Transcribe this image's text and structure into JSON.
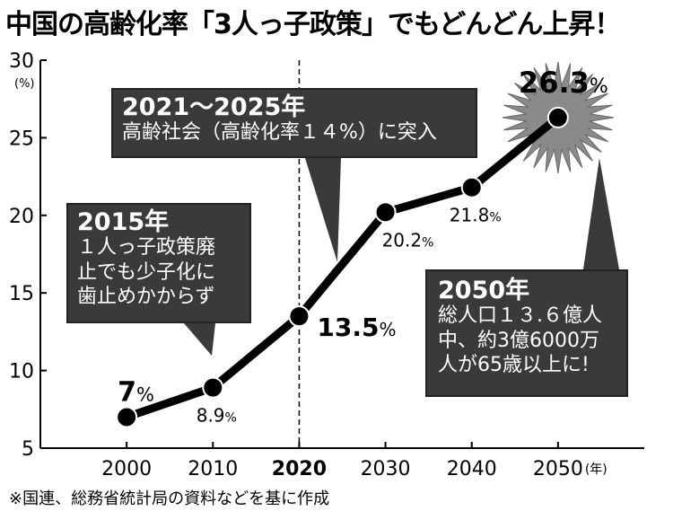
{
  "title": "中国の高齢化率「3人っ子政策」でもどんどん上昇！",
  "footnote": "※国連、総務省統計局の資料などを基に作成",
  "chart_data": {
    "type": "line",
    "x": [
      2000,
      2010,
      2020,
      2030,
      2040,
      2050
    ],
    "series": [
      {
        "values": [
          7,
          8.9,
          13.5,
          20.2,
          21.8,
          26.3
        ]
      }
    ],
    "data_labels": [
      "7%",
      "8.9%",
      "13.5%",
      "20.2%",
      "21.8%",
      "26.3%"
    ],
    "xlim": [
      1990,
      2060
    ],
    "ylim": [
      5,
      30
    ],
    "yticks": [
      5,
      10,
      15,
      20,
      25,
      30
    ],
    "xticks": [
      "2000",
      "2010",
      "2020",
      "2030",
      "2040",
      "2050"
    ],
    "x_unit": "(年)",
    "y_unit": "(%)",
    "highlight_year": 2020
  },
  "callouts": {
    "c2021": {
      "head": "2021〜2025年",
      "body": "高齢社会（高齢化率１４%）に突入"
    },
    "c2015": {
      "head": "2015年",
      "body": "１人っ子政策廃\n止でも少子化に\n歯止めかからず"
    },
    "c2050": {
      "head": "2050年",
      "body": "総人口１３.６億人\n中、約3億6000万\n人が65歳以上に!"
    }
  }
}
